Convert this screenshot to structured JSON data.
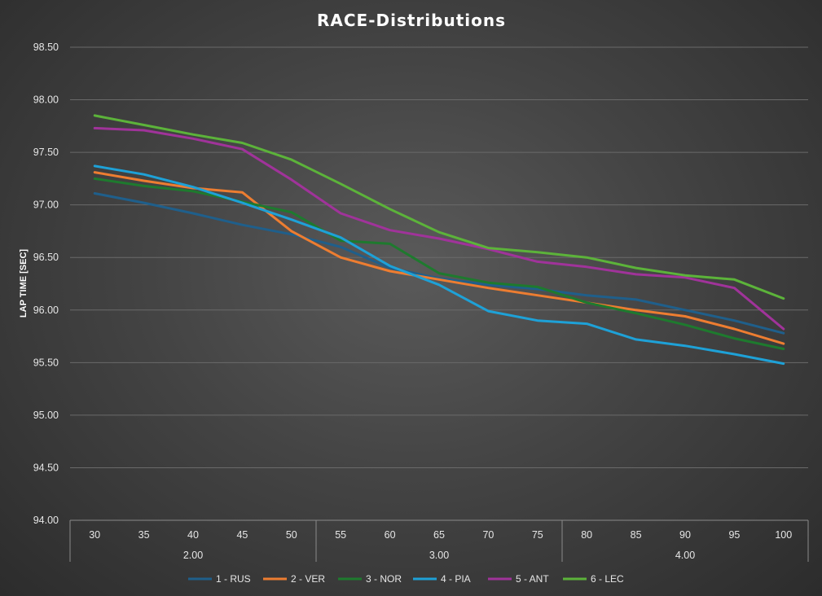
{
  "chart_data": {
    "type": "line",
    "title": "RACE-Distributions",
    "ylabel": "LAP TIME [SEC]",
    "xlabel": "",
    "ylim": [
      94.0,
      98.5
    ],
    "yticks": [
      "94.00",
      "94.50",
      "95.00",
      "95.50",
      "96.00",
      "96.50",
      "97.00",
      "97.50",
      "98.00",
      "98.50"
    ],
    "categories": [
      "30",
      "35",
      "40",
      "45",
      "50",
      "55",
      "60",
      "65",
      "70",
      "75",
      "80",
      "85",
      "90",
      "95",
      "100"
    ],
    "groups": [
      {
        "label": "2.00",
        "span": 5
      },
      {
        "label": "3.00",
        "span": 5
      },
      {
        "label": "4.00",
        "span": 5
      }
    ],
    "legend_position": "bottom",
    "series": [
      {
        "name": "1 - RUS",
        "color": "#1f5f8b",
        "values": [
          97.11,
          97.02,
          96.92,
          96.81,
          96.72,
          96.6,
          96.4,
          96.3,
          96.24,
          96.2,
          96.14,
          96.1,
          96.0,
          95.9,
          95.78
        ]
      },
      {
        "name": "2 - VER",
        "color": "#ed7d31",
        "values": [
          97.31,
          97.23,
          97.16,
          97.12,
          96.75,
          96.5,
          96.37,
          96.29,
          96.21,
          96.14,
          96.07,
          96.0,
          95.94,
          95.82,
          95.68
        ]
      },
      {
        "name": "3 - NOR",
        "color": "#1e7a2e",
        "values": [
          97.25,
          97.18,
          97.13,
          97.03,
          96.93,
          96.66,
          96.63,
          96.35,
          96.26,
          96.22,
          96.07,
          95.97,
          95.86,
          95.73,
          95.63
        ]
      },
      {
        "name": "4 - PIA",
        "color": "#1ea1d7",
        "values": [
          97.37,
          97.29,
          97.17,
          97.02,
          96.86,
          96.69,
          96.42,
          96.24,
          95.99,
          95.9,
          95.87,
          95.72,
          95.66,
          95.58,
          95.49
        ]
      },
      {
        "name": "5 - ANT",
        "color": "#a0339a",
        "values": [
          97.73,
          97.71,
          97.63,
          97.53,
          97.24,
          96.92,
          96.76,
          96.68,
          96.58,
          96.46,
          96.41,
          96.34,
          96.31,
          96.21,
          95.82
        ]
      },
      {
        "name": "6 - LEC",
        "color": "#5cb33a",
        "values": [
          97.85,
          97.76,
          97.67,
          97.59,
          97.43,
          97.2,
          96.96,
          96.74,
          96.59,
          96.55,
          96.5,
          96.4,
          96.33,
          96.29,
          96.11
        ]
      }
    ]
  }
}
